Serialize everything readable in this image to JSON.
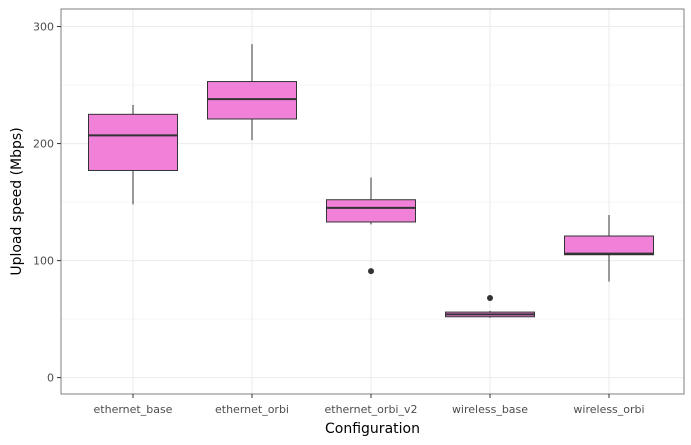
{
  "chart_data": {
    "type": "boxplot",
    "xlabel": "Configuration",
    "ylabel": "Upload speed (Mbps)",
    "ylim": [
      -14,
      315
    ],
    "y_ticks": [
      0,
      100,
      200,
      300
    ],
    "y_tick_labels": [
      "0",
      "100",
      "200",
      "300"
    ],
    "grid": true,
    "categories": [
      "ethernet_base",
      "ethernet_orbi",
      "ethernet_orbi_v2",
      "wireless_base",
      "wireless_orbi"
    ],
    "boxes": [
      {
        "category": "ethernet_base",
        "whisker_low": 148,
        "q1": 177,
        "median": 207,
        "q3": 225,
        "whisker_high": 233,
        "outliers": []
      },
      {
        "category": "ethernet_orbi",
        "whisker_low": 203,
        "q1": 221,
        "median": 238,
        "q3": 253,
        "whisker_high": 285,
        "outliers": []
      },
      {
        "category": "ethernet_orbi_v2",
        "whisker_low": 131,
        "q1": 133,
        "median": 145,
        "q3": 152,
        "whisker_high": 171,
        "outliers": [
          91
        ]
      },
      {
        "category": "wireless_base",
        "whisker_low": 51,
        "q1": 52,
        "median": 54,
        "q3": 56,
        "whisker_high": 57,
        "outliers": [
          68
        ]
      },
      {
        "category": "wireless_orbi",
        "whisker_low": 82,
        "q1": 105,
        "median": 106,
        "q3": 121,
        "whisker_high": 139,
        "outliers": []
      }
    ],
    "colors": {
      "box_fill": "#f080d8",
      "box_stroke": "#333333",
      "panel_border": "#7f7f7f",
      "grid_major": "#ebebeb",
      "grid_minor": "#f5f5f5",
      "outlier": "#333333"
    }
  }
}
